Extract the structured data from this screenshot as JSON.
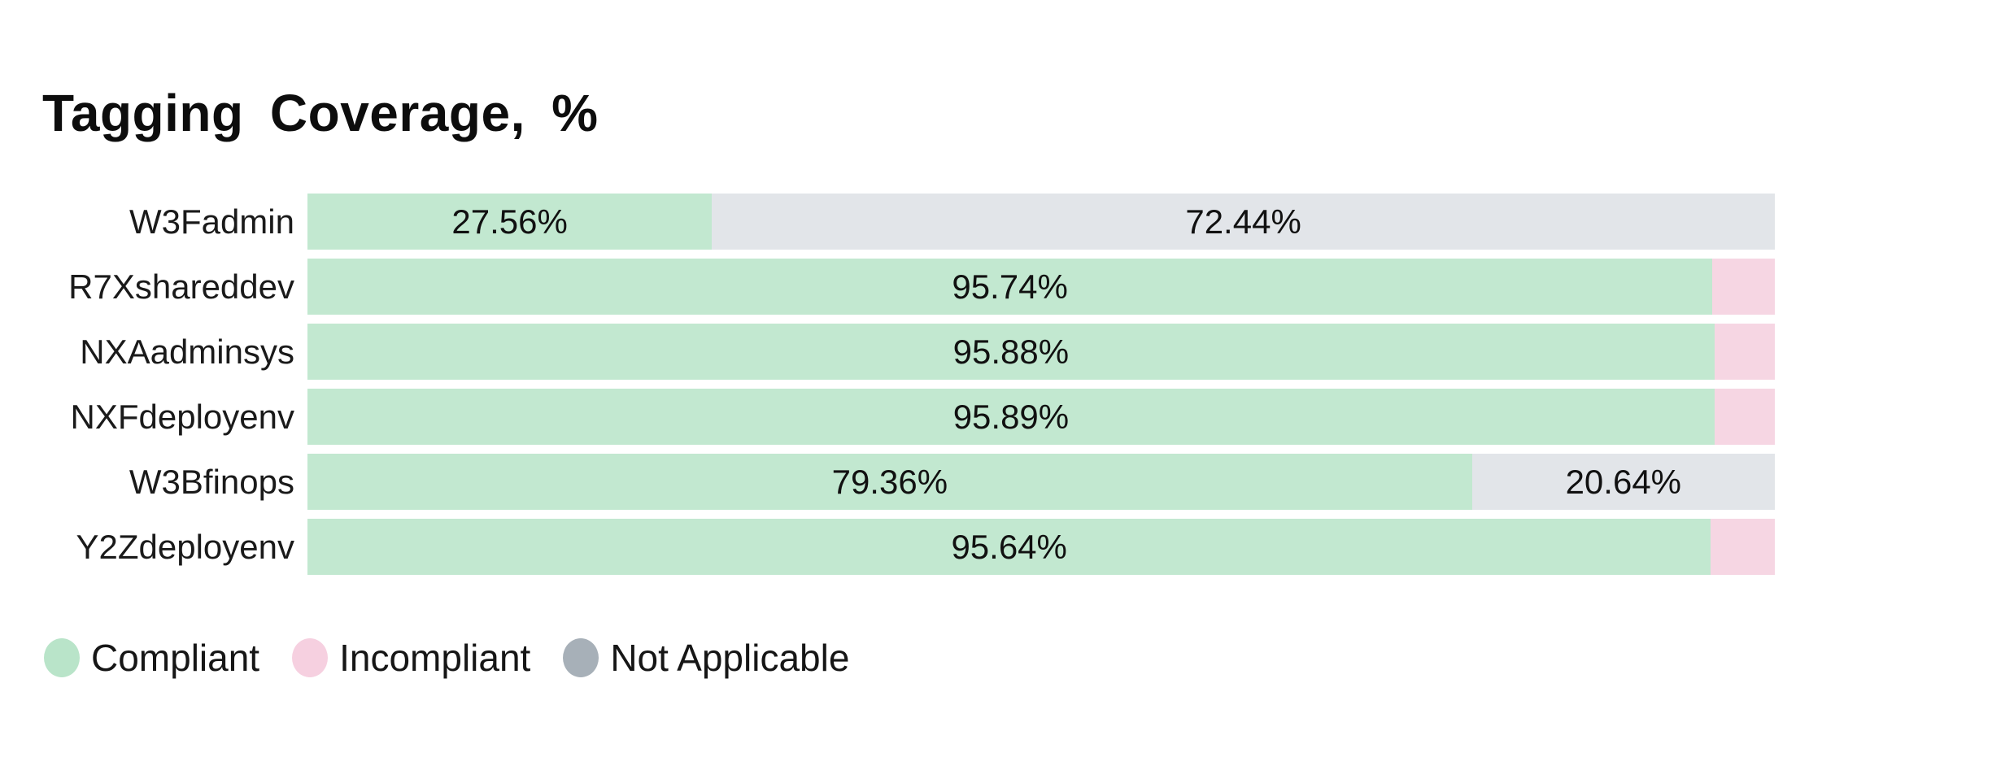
{
  "title": "Tagging Coverage, %",
  "colors": {
    "compliant": "#c2e8d0",
    "incompliant": "#f6d6e3",
    "not_applicable": "#e2e5e9",
    "text": "#141414",
    "background": "#ffffff"
  },
  "legend": {
    "items": [
      {
        "id": "compliant",
        "label": "Compliant",
        "color": "#b9e4c9"
      },
      {
        "id": "incompliant",
        "label": "Incompliant",
        "color": "#f6d0e0"
      },
      {
        "id": "not-applicable",
        "label": "Not Applicable",
        "color": "#a7b0b8"
      }
    ]
  },
  "chart_data": {
    "type": "bar",
    "orientation": "horizontal",
    "stacked": true,
    "title": "Tagging Coverage, %",
    "unit": "%",
    "xlim": [
      0,
      100
    ],
    "grid": false,
    "legend_position": "bottom",
    "categories": [
      "W3Fadmin",
      "R7Xshareddev",
      "NXAadminsys",
      "NXFdeployenv",
      "W3Bfinops",
      "Y2Zdeployenv"
    ],
    "series": [
      {
        "name": "Compliant",
        "values": [
          27.56,
          95.74,
          95.88,
          95.89,
          79.36,
          95.64
        ]
      },
      {
        "name": "Incompliant",
        "values": [
          0,
          4.26,
          4.12,
          4.11,
          0,
          4.36
        ]
      },
      {
        "name": "Not Applicable",
        "values": [
          72.44,
          0,
          0,
          0,
          20.64,
          0
        ]
      }
    ]
  },
  "rows": [
    {
      "label": "W3Fadmin",
      "segments": [
        {
          "series": "compliant",
          "value": 27.56,
          "label": "27.56%"
        },
        {
          "series": "not_applicable",
          "value": 72.44,
          "label": "72.44%"
        }
      ]
    },
    {
      "label": "R7Xshareddev",
      "segments": [
        {
          "series": "compliant",
          "value": 95.74,
          "label": "95.74%"
        },
        {
          "series": "incompliant",
          "value": 4.26,
          "label": ""
        }
      ]
    },
    {
      "label": "NXAadminsys",
      "segments": [
        {
          "series": "compliant",
          "value": 95.88,
          "label": "95.88%"
        },
        {
          "series": "incompliant",
          "value": 4.12,
          "label": ""
        }
      ]
    },
    {
      "label": "NXFdeployenv",
      "segments": [
        {
          "series": "compliant",
          "value": 95.89,
          "label": "95.89%"
        },
        {
          "series": "incompliant",
          "value": 4.11,
          "label": ""
        }
      ]
    },
    {
      "label": "W3Bfinops",
      "segments": [
        {
          "series": "compliant",
          "value": 79.36,
          "label": "79.36%"
        },
        {
          "series": "not_applicable",
          "value": 20.64,
          "label": "20.64%"
        }
      ]
    },
    {
      "label": "Y2Zdeployenv",
      "segments": [
        {
          "series": "compliant",
          "value": 95.64,
          "label": "95.64%"
        },
        {
          "series": "incompliant",
          "value": 4.36,
          "label": ""
        }
      ]
    }
  ]
}
